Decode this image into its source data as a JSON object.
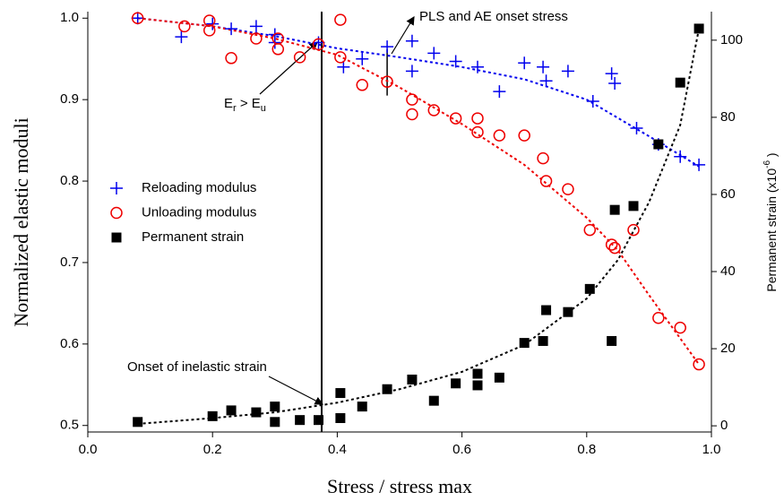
{
  "chart_data": {
    "type": "scatter",
    "x_label": "Stress / stress max",
    "y_label": "Normalized elastic moduli",
    "y2_label_parts": [
      "Permanent strain (x10",
      "-6",
      " )"
    ],
    "xlim": [
      0,
      1
    ],
    "ylim": [
      0.492,
      1.008
    ],
    "y2lim": [
      -1.6,
      107.4
    ],
    "xticks": [
      {
        "value": 0,
        "label": "0.0"
      },
      0.2,
      0.4,
      0.6,
      0.8,
      {
        "value": 1,
        "label": "1.0"
      }
    ],
    "yticks": [
      0.5,
      0.6,
      0.7,
      0.8,
      0.9,
      {
        "value": 1,
        "label": "1.0"
      }
    ],
    "y2ticks": [
      0,
      20,
      40,
      60,
      80,
      100
    ],
    "legend": "left",
    "series": [
      {
        "name": "Reloading modulus",
        "color": "#0000ee",
        "marker": "plus",
        "x": [
          0.08,
          0.15,
          0.2,
          0.23,
          0.27,
          0.3,
          0.3,
          0.37,
          0.41,
          0.44,
          0.48,
          0.52,
          0.52,
          0.555,
          0.59,
          0.625,
          0.66,
          0.7,
          0.73,
          0.735,
          0.77,
          0.81,
          0.84,
          0.845,
          0.88,
          0.915,
          0.95,
          0.98
        ],
        "values": [
          1.0,
          0.977,
          0.993,
          0.987,
          0.99,
          0.98,
          0.97,
          0.97,
          0.94,
          0.95,
          0.965,
          0.972,
          0.935,
          0.957,
          0.947,
          0.94,
          0.91,
          0.945,
          0.94,
          0.923,
          0.935,
          0.898,
          0.932,
          0.92,
          0.865,
          0.845,
          0.83,
          0.82
        ]
      },
      {
        "name": "Unloading modulus",
        "color": "#ee0000",
        "marker": "circle",
        "x": [
          0.08,
          0.155,
          0.195,
          0.195,
          0.23,
          0.27,
          0.305,
          0.305,
          0.34,
          0.37,
          0.405,
          0.405,
          0.44,
          0.48,
          0.52,
          0.52,
          0.555,
          0.59,
          0.625,
          0.625,
          0.66,
          0.7,
          0.73,
          0.735,
          0.77,
          0.805,
          0.84,
          0.845,
          0.875,
          0.915,
          0.95,
          0.98
        ],
        "values": [
          1.0,
          0.99,
          0.997,
          0.985,
          0.951,
          0.975,
          0.962,
          0.975,
          0.952,
          0.968,
          0.998,
          0.952,
          0.918,
          0.922,
          0.9,
          0.882,
          0.887,
          0.877,
          0.877,
          0.86,
          0.856,
          0.856,
          0.828,
          0.8,
          0.79,
          0.74,
          0.722,
          0.718,
          0.74,
          0.632,
          0.62,
          0.575
        ]
      },
      {
        "name": "Permanent strain",
        "color": "#000000",
        "marker": "square",
        "axis": "y2",
        "x": [
          0.08,
          0.2,
          0.23,
          0.27,
          0.3,
          0.3,
          0.34,
          0.37,
          0.405,
          0.405,
          0.44,
          0.48,
          0.52,
          0.555,
          0.59,
          0.625,
          0.625,
          0.66,
          0.7,
          0.73,
          0.735,
          0.77,
          0.805,
          0.84,
          0.845,
          0.875,
          0.915,
          0.95,
          0.98
        ],
        "values": [
          1,
          2.5,
          4,
          3.5,
          5,
          1,
          1.5,
          1.5,
          2,
          8.5,
          5,
          9.5,
          12,
          6.5,
          11,
          10.5,
          13.5,
          12.5,
          21.5,
          22,
          30,
          29.5,
          35.5,
          22,
          56,
          57,
          73,
          89,
          103
        ]
      }
    ],
    "fit_lines": [
      {
        "color": "#0000ee",
        "x": [
          0.08,
          0.2,
          0.3,
          0.4,
          0.5,
          0.6,
          0.7,
          0.8,
          0.9,
          0.98
        ],
        "values": [
          1.0,
          0.99,
          0.978,
          0.963,
          0.952,
          0.94,
          0.925,
          0.9,
          0.855,
          0.818
        ]
      },
      {
        "color": "#ee0000",
        "x": [
          0.08,
          0.2,
          0.3,
          0.4,
          0.5,
          0.6,
          0.7,
          0.8,
          0.85,
          0.9,
          0.98
        ],
        "values": [
          1.0,
          0.99,
          0.975,
          0.955,
          0.915,
          0.87,
          0.82,
          0.755,
          0.715,
          0.66,
          0.575
        ]
      },
      {
        "color": "#000000",
        "axis": "y2",
        "x": [
          0.08,
          0.2,
          0.3,
          0.4,
          0.5,
          0.6,
          0.7,
          0.8,
          0.85,
          0.9,
          0.95,
          0.98
        ],
        "values": [
          0.5,
          2,
          3.5,
          6,
          9.5,
          14,
          21,
          33,
          43,
          58,
          78,
          103
        ]
      }
    ],
    "vertical_line_x": 0.375,
    "pls_marker": {
      "x": 0.48,
      "y": [
        0.905,
        0.962
      ]
    },
    "annotations": {
      "moduli_parts": [
        "E",
        "r",
        " > E",
        "u"
      ],
      "pls": "PLS and AE onset stress",
      "onset": "Onset of inelastic strain"
    }
  }
}
